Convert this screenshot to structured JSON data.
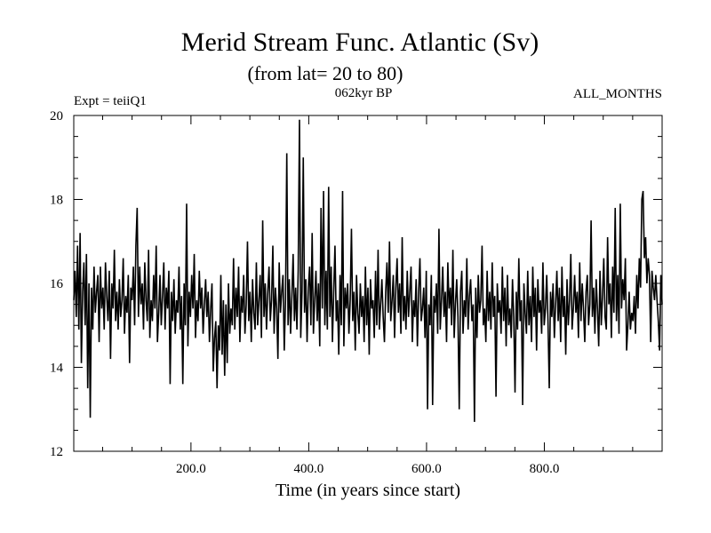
{
  "chart_data": {
    "type": "line",
    "title": "Merid Stream Func. Atlantic (Sv)",
    "subtitle": "(from lat= 20 to 80)",
    "left_note": "Expt = teiiQ1",
    "center_note": "062kyr BP",
    "right_note": "ALL_MONTHS",
    "xlabel": "Time (in years since start)",
    "ylabel": "",
    "xlim": [
      1,
      1000
    ],
    "ylim": [
      12,
      20
    ],
    "xticks": [
      200,
      400,
      600,
      800
    ],
    "xtick_labels": [
      "200.0",
      "400.0",
      "600.0",
      "800.0"
    ],
    "yticks": [
      12,
      14,
      16,
      18,
      20
    ],
    "ytick_labels": [
      "12",
      "14",
      "16",
      "18",
      "20"
    ],
    "grid": false,
    "series_color": "#000000",
    "series": [
      {
        "values": [
          15.6,
          16.3,
          15.2,
          16.9,
          14.9,
          17.2,
          14.1,
          15.8,
          16.5,
          15.0,
          16.7,
          13.5,
          16.0,
          12.8,
          15.9,
          14.9,
          16.4,
          15.3,
          15.8,
          16.2,
          14.6,
          16.4,
          15.4,
          15.9,
          14.9,
          16.5,
          15.7,
          15.1,
          16.3,
          14.2,
          16.0,
          15.4,
          16.8,
          15.1,
          15.8,
          14.9,
          16.1,
          15.2,
          15.6,
          16.6,
          14.8,
          15.7,
          15.3,
          16.2,
          14.1,
          15.9,
          15.6,
          16.4,
          15.0,
          16.9,
          17.8,
          15.2,
          16.4,
          15.5,
          16.0,
          14.9,
          16.5,
          15.6,
          15.1,
          16.8,
          14.7,
          15.6,
          15.1,
          16.2,
          15.4,
          16.9,
          14.6,
          15.3,
          16.2,
          15.0,
          15.7,
          16.5,
          14.9,
          15.9,
          15.4,
          16.3,
          13.6,
          15.8,
          15.1,
          16.1,
          14.8,
          15.6,
          15.3,
          16.4,
          14.9,
          15.7,
          13.6,
          16.0,
          15.0,
          17.9,
          14.5,
          15.8,
          15.2,
          16.2,
          15.4,
          16.7,
          14.7,
          15.6,
          15.1,
          16.3,
          15.4,
          15.9,
          14.8,
          15.5,
          16.1,
          15.2,
          15.8,
          14.6,
          15.4,
          16.0,
          13.9,
          14.7,
          15.1,
          13.5,
          15.0,
          14.4,
          16.2,
          14.3,
          15.6,
          13.8,
          15.5,
          14.1,
          16.0,
          14.8,
          15.4,
          15.0,
          16.6,
          14.9,
          15.9,
          15.2,
          16.4,
          14.6,
          15.7,
          15.3,
          16.2,
          14.8,
          15.5,
          17.0,
          15.1,
          15.8,
          14.6,
          16.1,
          15.3,
          14.9,
          16.5,
          15.0,
          15.6,
          16.2,
          14.7,
          17.5,
          15.2,
          16.0,
          14.9,
          15.8,
          16.4,
          15.1,
          15.6,
          16.9,
          14.8,
          15.9,
          15.4,
          14.2,
          16.5,
          15.3,
          15.8,
          16.2,
          14.4,
          15.6,
          19.1,
          15.0,
          16.1,
          14.8,
          15.7,
          16.7,
          15.1,
          15.9,
          14.9,
          16.3,
          19.9,
          14.7,
          15.8,
          19.0,
          15.3,
          16.1,
          14.6,
          15.9,
          16.4,
          15.0,
          17.2,
          14.8,
          15.6,
          16.3,
          15.1,
          16.0,
          14.5,
          17.8,
          15.4,
          18.2,
          15.0,
          16.3,
          14.9,
          18.3,
          15.2,
          16.4,
          14.6,
          15.8,
          16.9,
          15.1,
          15.6,
          14.3,
          16.2,
          15.0,
          18.2,
          14.5,
          15.9,
          15.4,
          16.0,
          14.8,
          15.6,
          17.3,
          15.1,
          15.8,
          14.4,
          16.2,
          15.3,
          14.8,
          16.0,
          15.2,
          15.7,
          14.6,
          16.4,
          15.0,
          15.9,
          14.3,
          16.1,
          15.4,
          15.6,
          14.7,
          16.3,
          15.0,
          16.8,
          14.9,
          15.5,
          16.1,
          15.2,
          14.6,
          15.8,
          16.5,
          15.3,
          17.0,
          15.1,
          15.6,
          16.2,
          14.7,
          15.9,
          16.6,
          15.3,
          16.0,
          14.8,
          17.1,
          15.1,
          15.7,
          14.9,
          16.3,
          15.2,
          15.8,
          16.4,
          14.6,
          15.6,
          15.2,
          16.1,
          14.5,
          15.8,
          16.6,
          15.1,
          15.4,
          15.9,
          14.7,
          16.3,
          13.0,
          15.5,
          15.0,
          16.2,
          13.1,
          15.7,
          15.3,
          16.0,
          14.8,
          17.3,
          14.9,
          15.6,
          16.4,
          15.2,
          15.8,
          14.6,
          16.5,
          15.4,
          15.9,
          15.0,
          16.8,
          14.7,
          15.5,
          16.1,
          15.2,
          13.0,
          15.8,
          16.3,
          14.8,
          15.6,
          15.2,
          16.6,
          14.9,
          15.7,
          16.1,
          15.1,
          15.5,
          12.7,
          15.9,
          14.7,
          16.2,
          15.3,
          15.6,
          16.9,
          15.0,
          15.4,
          14.6,
          16.3,
          15.1,
          15.8,
          14.9,
          16.5,
          15.2,
          15.7,
          13.3,
          16.0,
          15.3,
          15.6,
          14.8,
          16.4,
          15.1,
          15.9,
          14.5,
          16.2,
          15.0,
          15.4,
          14.7,
          16.1,
          15.2,
          13.4,
          15.8,
          14.9,
          16.6,
          15.1,
          15.6,
          13.1,
          16.0,
          15.3,
          14.8,
          16.3,
          15.0,
          15.7,
          14.6,
          16.4,
          15.2,
          15.9,
          14.4,
          16.1,
          15.3,
          15.6,
          14.8,
          16.5,
          15.0,
          15.4,
          16.2,
          15.1,
          13.5,
          15.8,
          15.2,
          16.0,
          14.7,
          15.5,
          16.3,
          15.1,
          15.9,
          14.6,
          16.4,
          15.2,
          15.7,
          14.3,
          16.1,
          15.0,
          15.6,
          16.7,
          14.9,
          15.4,
          16.2,
          15.3,
          15.8,
          14.7,
          16.5,
          15.1,
          16.0,
          15.4,
          14.6,
          15.8,
          16.2,
          15.0,
          15.5,
          17.5,
          15.2,
          15.9,
          14.8,
          16.1,
          15.4,
          14.5,
          16.3,
          15.0,
          15.7,
          16.6,
          15.2,
          14.9,
          17.1,
          15.5,
          16.0,
          14.7,
          16.4,
          15.3,
          17.8,
          15.1,
          16.2,
          14.8,
          17.9,
          15.4,
          16.1,
          15.6,
          16.6,
          14.4,
          15.0,
          15.8,
          14.9,
          15.3,
          15.1,
          15.7,
          14.8,
          16.2,
          15.4,
          16.6,
          15.9,
          18.0,
          18.2,
          16.6,
          17.1,
          16.0,
          16.6,
          16.2,
          14.6,
          16.3,
          15.9,
          15.6,
          16.2,
          15.6,
          15.1,
          14.4,
          16.2,
          15.5
        ]
      }
    ]
  }
}
